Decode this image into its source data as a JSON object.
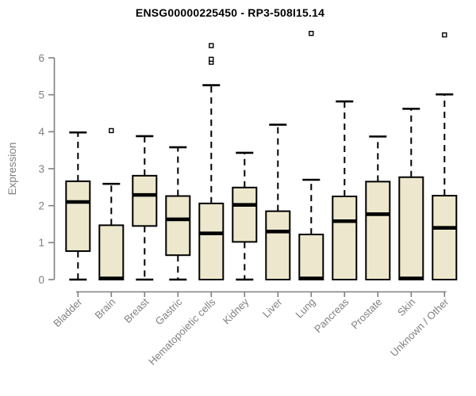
{
  "figure": {
    "title": "ENSG00000225450 - RP3-508I15.14",
    "ylabel": "Expression"
  },
  "chart_data": {
    "type": "boxplot",
    "title": "ENSG00000225450 - RP3-508I15.14",
    "xlabel": "",
    "ylabel": "Expression",
    "ylim": [
      0,
      6.8
    ],
    "yticks": [
      0,
      1,
      2,
      3,
      4,
      5,
      6
    ],
    "grid": false,
    "legend": "none",
    "categories": [
      "Bladder",
      "Brain",
      "Breast",
      "Gastric",
      "Hematopoietic cells",
      "Kidney",
      "Liver",
      "Lung",
      "Pancreas",
      "Prostate",
      "Skin",
      "Unknown / Other"
    ],
    "boxes": [
      {
        "category": "Bladder",
        "whisker_low": 0,
        "q1": 0.77,
        "median": 2.1,
        "q3": 2.66,
        "whisker_high": 3.98,
        "outliers": []
      },
      {
        "category": "Brain",
        "whisker_low": 0,
        "q1": 0.0,
        "median": 0.03,
        "q3": 1.47,
        "whisker_high": 2.59,
        "outliers": [
          4.03
        ]
      },
      {
        "category": "Breast",
        "whisker_low": 0,
        "q1": 1.45,
        "median": 2.29,
        "q3": 2.81,
        "whisker_high": 3.88,
        "outliers": []
      },
      {
        "category": "Gastric",
        "whisker_low": 0,
        "q1": 0.66,
        "median": 1.63,
        "q3": 2.26,
        "whisker_high": 3.58,
        "outliers": []
      },
      {
        "category": "Hematopoietic cells",
        "whisker_low": 0,
        "q1": 0.0,
        "median": 1.25,
        "q3": 2.06,
        "whisker_high": 5.26,
        "outliers": [
          5.88,
          5.96,
          6.33
        ]
      },
      {
        "category": "Kidney",
        "whisker_low": 0,
        "q1": 1.02,
        "median": 2.02,
        "q3": 2.49,
        "whisker_high": 3.43,
        "outliers": []
      },
      {
        "category": "Liver",
        "whisker_low": 0,
        "q1": 0.0,
        "median": 1.3,
        "q3": 1.85,
        "whisker_high": 4.19,
        "outliers": []
      },
      {
        "category": "Lung",
        "whisker_low": 0,
        "q1": 0.0,
        "median": 0.03,
        "q3": 1.22,
        "whisker_high": 2.7,
        "outliers": [
          6.66
        ]
      },
      {
        "category": "Pancreas",
        "whisker_low": 0,
        "q1": 0.0,
        "median": 1.58,
        "q3": 2.25,
        "whisker_high": 4.82,
        "outliers": []
      },
      {
        "category": "Prostate",
        "whisker_low": 0,
        "q1": 0.0,
        "median": 1.77,
        "q3": 2.65,
        "whisker_high": 3.87,
        "outliers": []
      },
      {
        "category": "Skin",
        "whisker_low": 0,
        "q1": 0.0,
        "median": 0.03,
        "q3": 2.77,
        "whisker_high": 4.62,
        "outliers": []
      },
      {
        "category": "Unknown / Other",
        "whisker_low": 0,
        "q1": 0.0,
        "median": 1.4,
        "q3": 2.27,
        "whisker_high": 5.01,
        "outliers": [
          6.62
        ]
      }
    ],
    "colors": {
      "box_fill": "#EDE8CD",
      "box_border": "#000000",
      "median": "#000000",
      "whisker": "#000000",
      "outlier_stroke": "#000000",
      "outlier_fill": "#ffffff",
      "axis": "#808080",
      "tick_label": "#808080",
      "title": "#000000",
      "background": "#ffffff"
    }
  }
}
